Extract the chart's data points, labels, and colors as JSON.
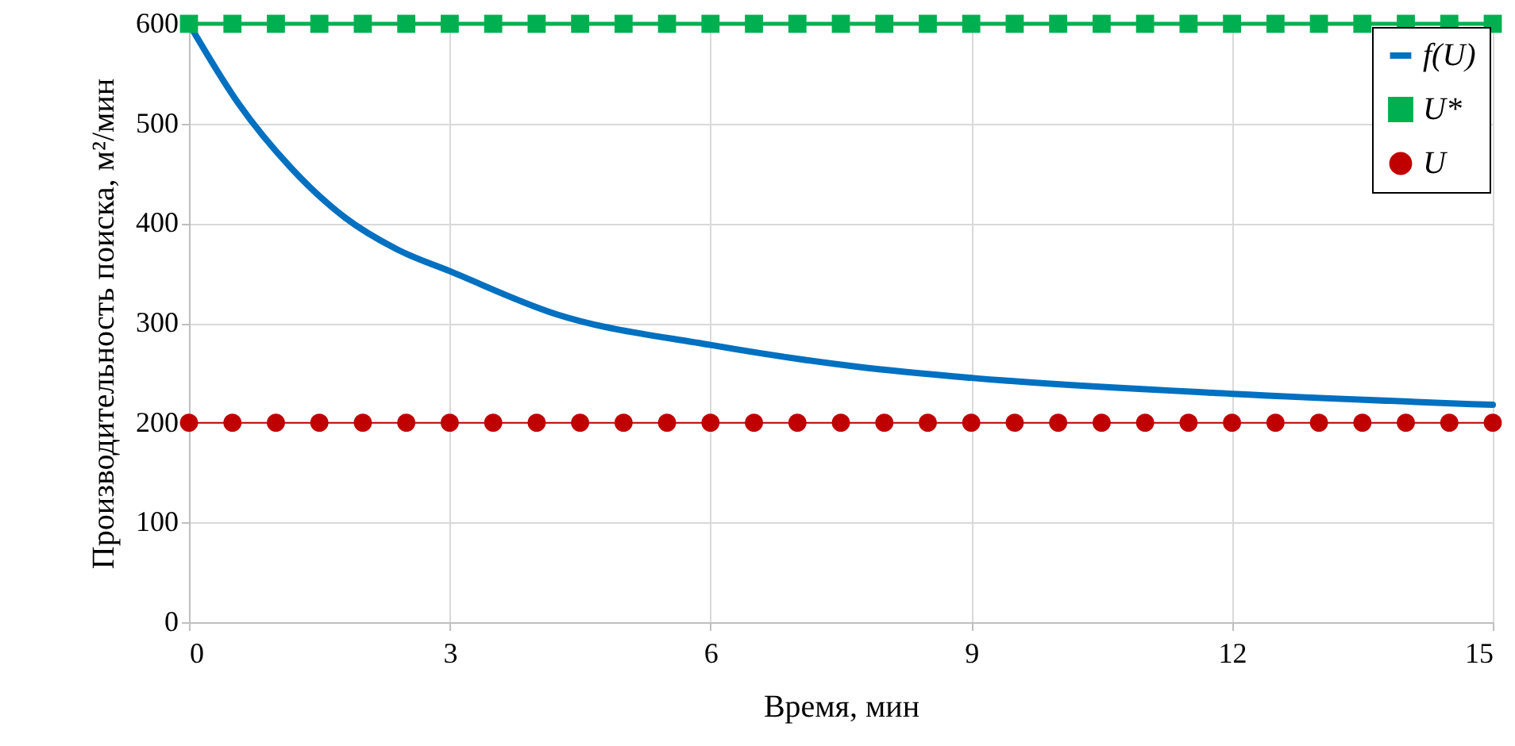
{
  "chart_data": {
    "type": "line",
    "xlabel": "Время, мин",
    "ylabel": "Производительность поиска, м²/мин",
    "xlim": [
      0,
      15
    ],
    "xticks": [
      0,
      3,
      6,
      9,
      12,
      15
    ],
    "ylim": [
      0,
      600
    ],
    "yticks": [
      0,
      100,
      200,
      300,
      400,
      500,
      600
    ],
    "grid": true,
    "legend": "top right",
    "series": [
      {
        "name": "f(U)",
        "color": "#0070c0",
        "marker": "none",
        "x": [
          0,
          0.57,
          1.18,
          1.79,
          2.39,
          3,
          4.22,
          6,
          7.7,
          9,
          12,
          15
        ],
        "values": [
          600,
          520,
          455,
          406,
          374,
          352,
          309,
          278,
          256,
          245,
          229,
          218
        ]
      },
      {
        "name": "U*",
        "color": "#00b050",
        "marker": "square",
        "x": [
          0,
          0.5,
          1,
          1.5,
          2,
          2.5,
          3,
          3.5,
          4,
          4.5,
          5,
          5.5,
          6,
          6.5,
          7,
          7.5,
          8,
          8.5,
          9,
          9.5,
          10,
          10.5,
          11,
          11.5,
          12,
          12.5,
          13,
          13.5,
          14,
          14.5,
          15
        ],
        "values": [
          600,
          600,
          600,
          600,
          600,
          600,
          600,
          600,
          600,
          600,
          600,
          600,
          600,
          600,
          600,
          600,
          600,
          600,
          600,
          600,
          600,
          600,
          600,
          600,
          600,
          600,
          600,
          600,
          600,
          600,
          600
        ]
      },
      {
        "name": "U",
        "color": "#c00000",
        "marker": "circle",
        "x": [
          0,
          0.5,
          1,
          1.5,
          2,
          2.5,
          3,
          3.5,
          4,
          4.5,
          5,
          5.5,
          6,
          6.5,
          7,
          7.5,
          8,
          8.5,
          9,
          9.5,
          10,
          10.5,
          11,
          11.5,
          12,
          12.5,
          13,
          13.5,
          14,
          14.5,
          15
        ],
        "values": [
          200,
          200,
          200,
          200,
          200,
          200,
          200,
          200,
          200,
          200,
          200,
          200,
          200,
          200,
          200,
          200,
          200,
          200,
          200,
          200,
          200,
          200,
          200,
          200,
          200,
          200,
          200,
          200,
          200,
          200,
          200
        ]
      }
    ]
  }
}
